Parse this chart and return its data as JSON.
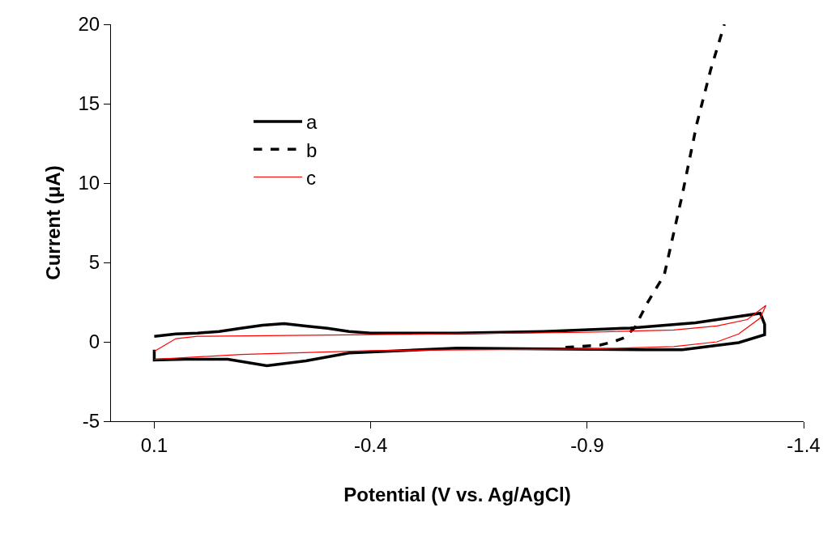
{
  "chart_data": {
    "type": "line",
    "xlabel": "Potential (V vs. Ag/AgCl)",
    "ylabel": "Current (μA)",
    "xlim": [
      0.2,
      -1.4
    ],
    "xticks": [
      0.1,
      -0.4,
      -0.9,
      -1.4
    ],
    "ylim": [
      -5,
      20
    ],
    "yticks": [
      -5,
      0,
      5,
      10,
      15,
      20
    ],
    "legend": "top left",
    "marker": "none",
    "series": [
      {
        "name": "a",
        "color": "#000000",
        "line_style": "solid",
        "x": [
          0.1,
          0.05,
          0.0,
          -0.05,
          -0.1,
          -0.15,
          -0.2,
          -0.25,
          -0.3,
          -0.35,
          -0.4,
          -0.6,
          -0.8,
          -1.0,
          -1.15,
          -1.3,
          -1.31,
          -1.31,
          -1.25,
          -1.12,
          -1.03,
          -0.8,
          -0.6,
          -0.35,
          -0.25,
          -0.16,
          -0.07,
          0.03,
          0.1,
          0.1
        ],
        "values": [
          0.35,
          0.5,
          0.55,
          0.65,
          0.85,
          1.05,
          1.15,
          1.0,
          0.85,
          0.65,
          0.55,
          0.55,
          0.65,
          0.87,
          1.2,
          1.8,
          1.1,
          0.45,
          -0.05,
          -0.5,
          -0.5,
          -0.45,
          -0.4,
          -0.7,
          -1.2,
          -1.5,
          -1.1,
          -1.1,
          -1.15,
          -0.5
        ]
      },
      {
        "name": "b",
        "color": "#000000",
        "line_style": "dashed",
        "x": [
          -0.85,
          -0.93,
          -0.96,
          -0.985,
          -1.01,
          -1.04,
          -1.078,
          -1.12,
          -1.153,
          -1.185,
          -1.217
        ],
        "values": [
          -0.35,
          -0.2,
          0.0,
          0.25,
          0.9,
          2.5,
          4.2,
          9.3,
          13.7,
          17.1,
          20
        ]
      },
      {
        "name": "c",
        "color": "#ff0000",
        "line_style": "solid",
        "x": [
          0.1,
          0.05,
          0.0,
          -0.4,
          -0.9,
          -1.1,
          -1.2,
          -1.27,
          -1.313,
          -1.3,
          -1.25,
          -1.2,
          -1.1,
          -0.9,
          -0.4,
          -0.1,
          0.1
        ],
        "values": [
          -0.6,
          0.2,
          0.35,
          0.45,
          0.6,
          0.75,
          1.0,
          1.4,
          2.3,
          1.5,
          0.5,
          0.0,
          -0.3,
          -0.45,
          -0.55,
          -0.8,
          -1.1
        ]
      }
    ]
  }
}
